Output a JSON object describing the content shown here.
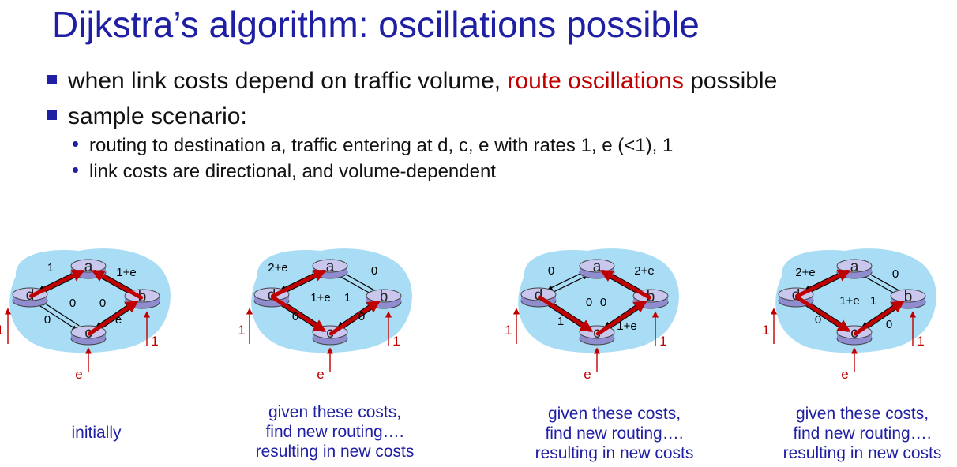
{
  "title": "Dijkstra’s algorithm: oscillations possible",
  "bullets": {
    "b1": {
      "before": "when  link costs depend on traffic volume, ",
      "highlight": "route oscillations",
      "after": " possible"
    },
    "b2": "sample scenario:",
    "sub1": "routing to destination a, traffic entering at d, c, e with rates 1, e (<1), 1",
    "sub2": "link costs are directional, and volume-dependent"
  },
  "colors": {
    "title": "#1f1fa3",
    "highlight": "#c00000",
    "route": "#c00000",
    "cloud": "#a9dcf5",
    "router": "#c9c7ee"
  },
  "nodes": [
    "a",
    "b",
    "c",
    "d"
  ],
  "diagrams": [
    {
      "labels": [
        {
          "id": "da",
          "text": "1"
        },
        {
          "id": "ba",
          "text": "1+e"
        },
        {
          "id": "dc_left",
          "text": "0"
        },
        {
          "id": "dc_mid",
          "text": "0"
        },
        {
          "id": "bc_mid",
          "text": "0"
        },
        {
          "id": "bc_low",
          "text": "e"
        }
      ],
      "inputs": [
        {
          "id": "d",
          "text": "1"
        },
        {
          "id": "b",
          "text": "1"
        },
        {
          "id": "c",
          "text": "e"
        }
      ],
      "caption": [
        "initially"
      ]
    },
    {
      "labels": [
        {
          "id": "da",
          "text": "2+e"
        },
        {
          "id": "ba",
          "text": "0"
        },
        {
          "id": "dc_mid",
          "text": "1+e"
        },
        {
          "id": "bc_mid",
          "text": "1"
        },
        {
          "id": "dc_low",
          "text": "0"
        },
        {
          "id": "bc_low",
          "text": "0"
        }
      ],
      "inputs": [
        {
          "id": "d",
          "text": "1"
        },
        {
          "id": "b",
          "text": "1"
        },
        {
          "id": "c",
          "text": "e"
        }
      ],
      "caption": [
        "given these costs,",
        "find new routing….",
        "resulting in new costs"
      ]
    },
    {
      "labels": [
        {
          "id": "da",
          "text": "0"
        },
        {
          "id": "ba",
          "text": "2+e"
        },
        {
          "id": "dc_mid",
          "text": "0"
        },
        {
          "id": "bc_mid",
          "text": "0"
        },
        {
          "id": "dc_low",
          "text": "1"
        },
        {
          "id": "bc_low",
          "text": "1+e"
        }
      ],
      "inputs": [
        {
          "id": "d",
          "text": "1"
        },
        {
          "id": "b",
          "text": "1"
        },
        {
          "id": "c",
          "text": "e"
        }
      ],
      "caption": [
        "given these costs,",
        "find new routing….",
        "resulting in new costs"
      ]
    },
    {
      "labels": [
        {
          "id": "da",
          "text": "2+e"
        },
        {
          "id": "ba",
          "text": "0"
        },
        {
          "id": "dc_mid",
          "text": "1+e"
        },
        {
          "id": "bc_mid",
          "text": "1"
        },
        {
          "id": "dc_low",
          "text": "0"
        },
        {
          "id": "bc_low",
          "text": "0"
        }
      ],
      "inputs": [
        {
          "id": "d",
          "text": "1"
        },
        {
          "id": "b",
          "text": "1"
        },
        {
          "id": "c",
          "text": "e"
        }
      ],
      "caption": [
        "given these costs,",
        "find new routing….",
        "resulting in new costs"
      ]
    }
  ]
}
